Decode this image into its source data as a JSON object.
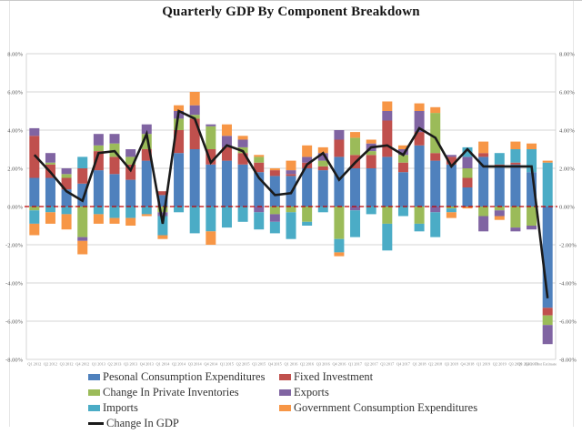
{
  "chart_data": {
    "type": "bar",
    "subtype": "stacked-bar-with-line",
    "title": "Quarterly GDP By Component Breakdown",
    "xlabel": "",
    "ylabel": "",
    "ylim": [
      -8,
      8
    ],
    "grid": true,
    "grid_color": "#d4d4d4",
    "zero_line_color": "#C00000",
    "legend_position": "bottom",
    "categories": [
      "Q1 2012",
      "Q2 2012",
      "Q3 2012",
      "Q4 2012",
      "Q1 2013",
      "Q2 2013",
      "Q3 2013",
      "Q4 2013",
      "Q1 2014",
      "Q2 2014",
      "Q3 2014",
      "Q4 2014",
      "Q1 2015",
      "Q2 2015",
      "Q3 2015",
      "Q4 2015",
      "Q1 2016",
      "Q2 2016",
      "Q3 2016",
      "Q4 2016",
      "Q1 2017",
      "Q2 2017",
      "Q3 2017",
      "Q4 2017",
      "Q1 2018",
      "Q2 2018",
      "Q3 2018",
      "Q4 2018",
      "Q1 2019",
      "Q2 2019",
      "Q3 2019",
      "Q4 2019",
      "Q1 2020 - First Estimate"
    ],
    "series": [
      {
        "id": "pce",
        "name": "Pesonal Consumption Expenditures",
        "color": "#4F81BD",
        "values": [
          1.5,
          1.5,
          0.9,
          1.2,
          1.9,
          1.7,
          1.4,
          2.4,
          0.6,
          2.8,
          3.0,
          2.2,
          2.4,
          2.2,
          1.8,
          1.6,
          1.6,
          2.0,
          1.9,
          2.6,
          2.0,
          2.0,
          2.6,
          1.8,
          3.2,
          2.4,
          2.2,
          1.0,
          2.6,
          2.1,
          2.2,
          1.8,
          -5.3
        ]
      },
      {
        "id": "fixed-investment",
        "name": "Fixed Investment",
        "color": "#C0504D",
        "values": [
          2.2,
          0.7,
          0.6,
          0.8,
          1.0,
          0.9,
          0.8,
          0.6,
          0.2,
          1.2,
          1.6,
          0.8,
          0.7,
          0.6,
          0.5,
          0.3,
          0.1,
          0.3,
          0.2,
          0.9,
          0.7,
          0.7,
          1.9,
          0.5,
          0.7,
          0.4,
          0.4,
          0.5,
          0.2,
          0.1,
          0.1,
          0.0,
          -0.4
        ]
      },
      {
        "id": "private-inventories",
        "name": "Change In Private Inventories",
        "color": "#9BBB59",
        "values": [
          -0.2,
          0.1,
          0.2,
          -1.6,
          0.3,
          0.7,
          0.4,
          0.8,
          -0.3,
          0.6,
          0.2,
          1.2,
          0.0,
          0.3,
          0.3,
          -0.4,
          -0.3,
          -0.8,
          0.3,
          -1.7,
          0.9,
          0.2,
          -0.9,
          0.4,
          -0.9,
          2.1,
          -0.1,
          0.5,
          -0.5,
          -0.2,
          -1.1,
          -1.0,
          -0.5
        ]
      },
      {
        "id": "exports",
        "name": "Exports",
        "color": "#8064A2",
        "values": [
          0.4,
          0.5,
          0.3,
          -0.2,
          0.6,
          0.5,
          0.4,
          0.5,
          -0.2,
          0.4,
          0.5,
          0.1,
          0.6,
          0.4,
          -0.3,
          -0.4,
          0.2,
          0.3,
          0.4,
          0.5,
          -0.2,
          0.4,
          0.5,
          0.3,
          1.1,
          -0.3,
          0.1,
          0.6,
          -0.8,
          -0.3,
          -0.2,
          -0.2,
          -1.0
        ]
      },
      {
        "id": "imports",
        "name": "Imports",
        "color": "#4BACC6",
        "values": [
          -0.7,
          -0.3,
          -0.4,
          0.6,
          -0.4,
          -0.6,
          -0.6,
          -0.4,
          -1.0,
          -0.3,
          -1.4,
          -1.3,
          -1.1,
          -0.8,
          -0.9,
          -0.6,
          -1.4,
          -0.2,
          -0.3,
          -0.7,
          -1.4,
          -0.4,
          -1.4,
          -0.5,
          -0.4,
          -1.3,
          -0.2,
          0.5,
          0.0,
          0.6,
          0.7,
          1.2,
          2.3
        ]
      },
      {
        "id": "government",
        "name": "Government Consumption Expenditures",
        "color": "#F79646",
        "values": [
          -0.6,
          -0.6,
          -0.8,
          -0.7,
          -0.5,
          -0.3,
          -0.4,
          -0.1,
          -0.2,
          0.3,
          0.7,
          -0.7,
          0.6,
          0.2,
          0.1,
          0.1,
          0.5,
          0.6,
          0.3,
          -0.2,
          0.3,
          0.2,
          0.5,
          0.2,
          0.4,
          0.3,
          -0.3,
          -0.1,
          0.6,
          -0.2,
          0.4,
          0.3,
          0.1
        ]
      }
    ],
    "line_series": {
      "id": "change-in-gdp",
      "name": "Change In GDP",
      "color": "#1a1a1a",
      "values": [
        2.7,
        1.8,
        0.8,
        0.3,
        2.8,
        2.9,
        1.9,
        3.8,
        -0.9,
        5.0,
        4.6,
        2.3,
        3.2,
        2.9,
        1.5,
        0.6,
        0.7,
        2.2,
        2.8,
        1.4,
        2.3,
        3.1,
        3.2,
        2.7,
        4.1,
        3.6,
        2.1,
        3.0,
        2.1,
        2.1,
        2.1,
        2.1,
        -4.8
      ]
    },
    "y_axis": {
      "min": -8,
      "max": 8,
      "step": 2,
      "unit": "%",
      "sides": "both",
      "ticks": [
        {
          "value": 8,
          "label": "8.00%"
        },
        {
          "value": 6,
          "label": "6.00%"
        },
        {
          "value": 4,
          "label": "4.00%"
        },
        {
          "value": 2,
          "label": "2.00%"
        },
        {
          "value": 0,
          "label": "0.00%"
        },
        {
          "value": -2,
          "label": "-2.00%"
        },
        {
          "value": -4,
          "label": "-4.00%"
        },
        {
          "value": -6,
          "label": "-6.00%"
        },
        {
          "value": -8,
          "label": "-8.00%"
        }
      ]
    },
    "legend": [
      {
        "id": "pce",
        "label": "Pesonal Consumption Expenditures",
        "color": "#4F81BD",
        "marker": "box"
      },
      {
        "id": "private-inventories",
        "label": "Change In Private Inventories",
        "color": "#9BBB59",
        "marker": "box"
      },
      {
        "id": "imports",
        "label": "Imports",
        "color": "#4BACC6",
        "marker": "box"
      },
      {
        "id": "change-in-gdp",
        "label": "Change In GDP",
        "color": "#1a1a1a",
        "marker": "line"
      },
      {
        "id": "fixed-investment",
        "label": "Fixed Investment",
        "color": "#C0504D",
        "marker": "box"
      },
      {
        "id": "exports",
        "label": "Exports",
        "color": "#8064A2",
        "marker": "box"
      },
      {
        "id": "government",
        "label": "Government Consumption Expenditures",
        "color": "#F79646",
        "marker": "box"
      }
    ]
  }
}
